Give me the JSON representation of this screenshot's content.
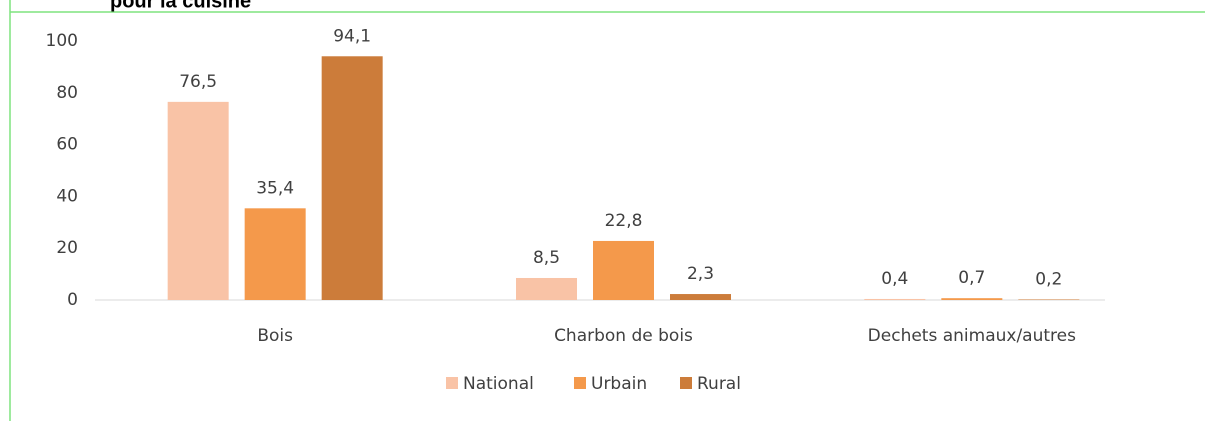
{
  "chart_data": {
    "type": "bar",
    "title": "pour la cuisine",
    "categories": [
      "Bois",
      "Charbon de bois",
      "Dechets animaux/autres"
    ],
    "series": [
      {
        "name": "National",
        "color": "#f9c3a6",
        "values": [
          76.5,
          8.5,
          0.4
        ],
        "value_labels": [
          "76,5",
          "8,5",
          "0,4"
        ]
      },
      {
        "name": "Urbain",
        "color": "#f4994b",
        "values": [
          35.4,
          22.8,
          0.7
        ],
        "value_labels": [
          "35,4",
          "22,8",
          "0,7"
        ]
      },
      {
        "name": "Rural",
        "color": "#cc7c3a",
        "values": [
          94.1,
          2.3,
          0.2
        ],
        "value_labels": [
          "94,1",
          "2,3",
          "0,2"
        ]
      }
    ],
    "ylim": [
      0,
      100
    ],
    "yticks": [
      0,
      20,
      40,
      60,
      80,
      100
    ],
    "grid": false,
    "legend": "bottom"
  }
}
